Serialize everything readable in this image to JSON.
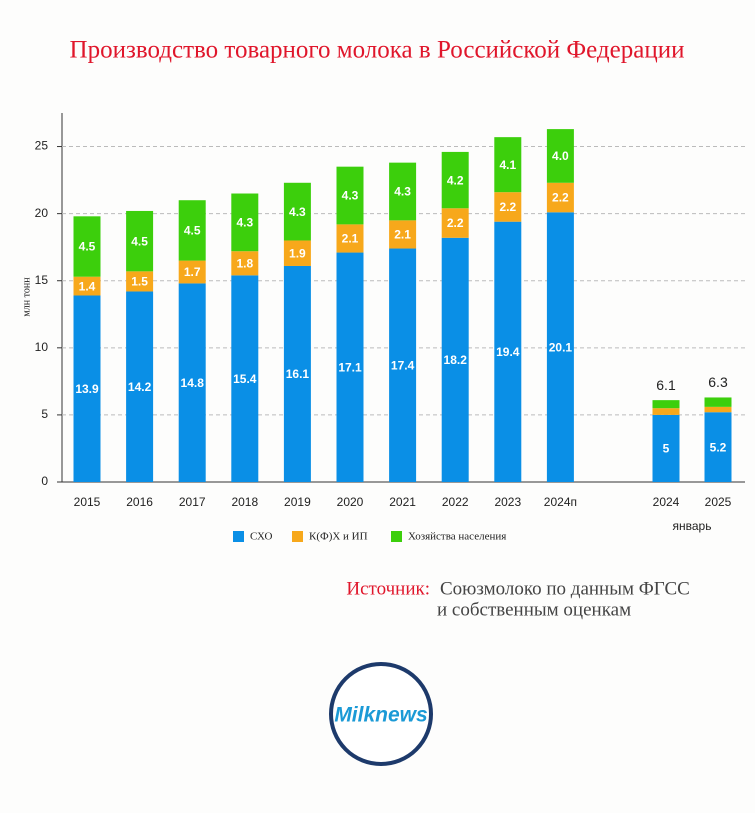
{
  "chart_data": {
    "type": "bar",
    "stacked": true,
    "title": "Производство товарного молока в Российской Федерации",
    "y_label": "млн тонн",
    "categories": [
      "2015",
      "2016",
      "2017",
      "2018",
      "2019",
      "2020",
      "2021",
      "2022",
      "2023",
      "2024п",
      "2024",
      "2025"
    ],
    "x_group_label": "январь",
    "series": [
      {
        "name": "СХО",
        "color": "#0a8fe6",
        "values": [
          13.9,
          14.2,
          14.8,
          15.4,
          16.1,
          17.1,
          17.4,
          18.2,
          19.4,
          20.1,
          5,
          5.2
        ]
      },
      {
        "name": "К(Ф)Х и ИП",
        "color": "#f7a81b",
        "values": [
          1.4,
          1.5,
          1.7,
          1.8,
          1.9,
          2.1,
          2.1,
          2.2,
          2.2,
          2.2,
          0.5,
          0.4
        ],
        "value_labels": [
          "1.4",
          "1.5",
          "1.7",
          "1.8",
          "1.9",
          "2.1",
          "2.1",
          "2.2",
          "2.2",
          "2.2",
          null,
          null
        ]
      },
      {
        "name": "Хозяйства населения",
        "color": "#3ccf0c",
        "values": [
          4.5,
          4.5,
          4.5,
          4.3,
          4.3,
          4.3,
          4.3,
          4.2,
          4.1,
          4.0,
          0.6,
          0.7
        ],
        "value_labels": [
          "4.5",
          "4.5",
          "4.5",
          "4.3",
          "4.3",
          "4.3",
          "4.3",
          "4.2",
          "4.1",
          "4.0",
          null,
          null
        ]
      }
    ],
    "totals": [
      null,
      null,
      null,
      null,
      null,
      null,
      null,
      null,
      null,
      null,
      6.1,
      6.3
    ],
    "ylim": [
      0,
      27.5
    ],
    "yticks": [
      0,
      5,
      10,
      15,
      20,
      25
    ],
    "grid": true
  },
  "source": {
    "label": "Источник:",
    "lines": [
      "Союзмолоко по данным ФГСС",
      "и собственным оценкам"
    ]
  },
  "logo": "Milknews"
}
